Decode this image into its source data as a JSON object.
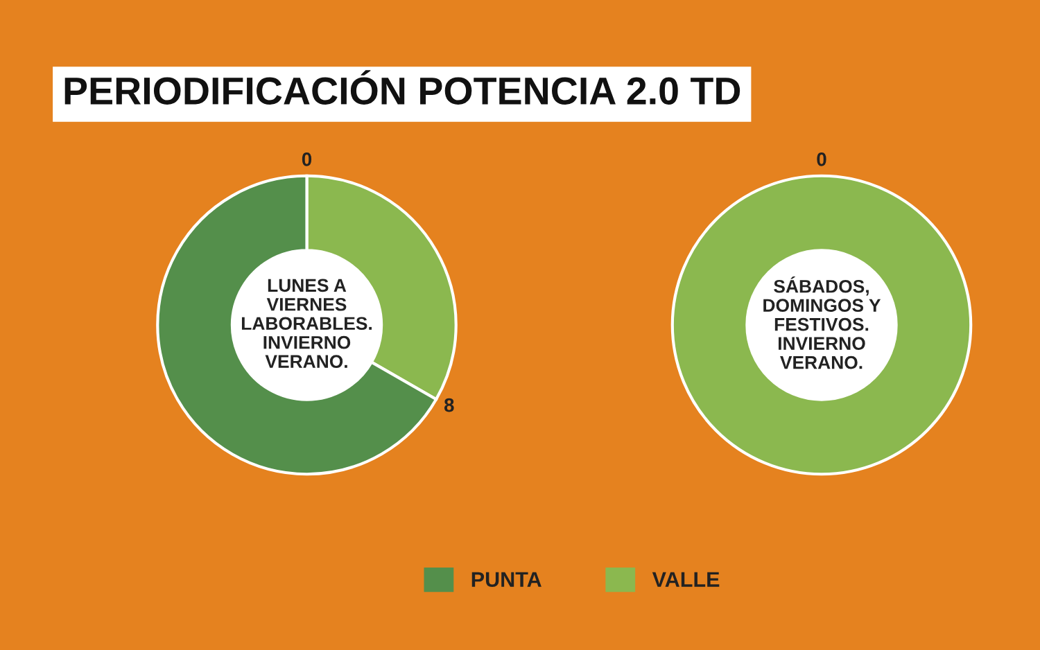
{
  "chart_data": [
    {
      "type": "donut",
      "title": "PERIODIFICACIÓN POTENCIA 2.0 TD",
      "subtitle": "LUNES A\nVIERNES\nLABORABLES.\nINVIERNO\nVERANO.",
      "categories": [
        "VALLE",
        "PUNTA"
      ],
      "values": [
        33.3,
        66.7
      ],
      "colors": [
        "#8bb84f",
        "#548f4b"
      ],
      "annotations": [
        "0",
        "8"
      ],
      "legend": "bottom"
    },
    {
      "type": "donut",
      "subtitle": "SÁBADOS,\nDOMINGOS Y\nFESTIVOS.\nINVIERNO\nVERANO.",
      "categories": [
        null
      ],
      "values": [
        100
      ],
      "colors": [
        "#8bb84f"
      ],
      "annotations": [
        "0"
      ]
    }
  ]
}
